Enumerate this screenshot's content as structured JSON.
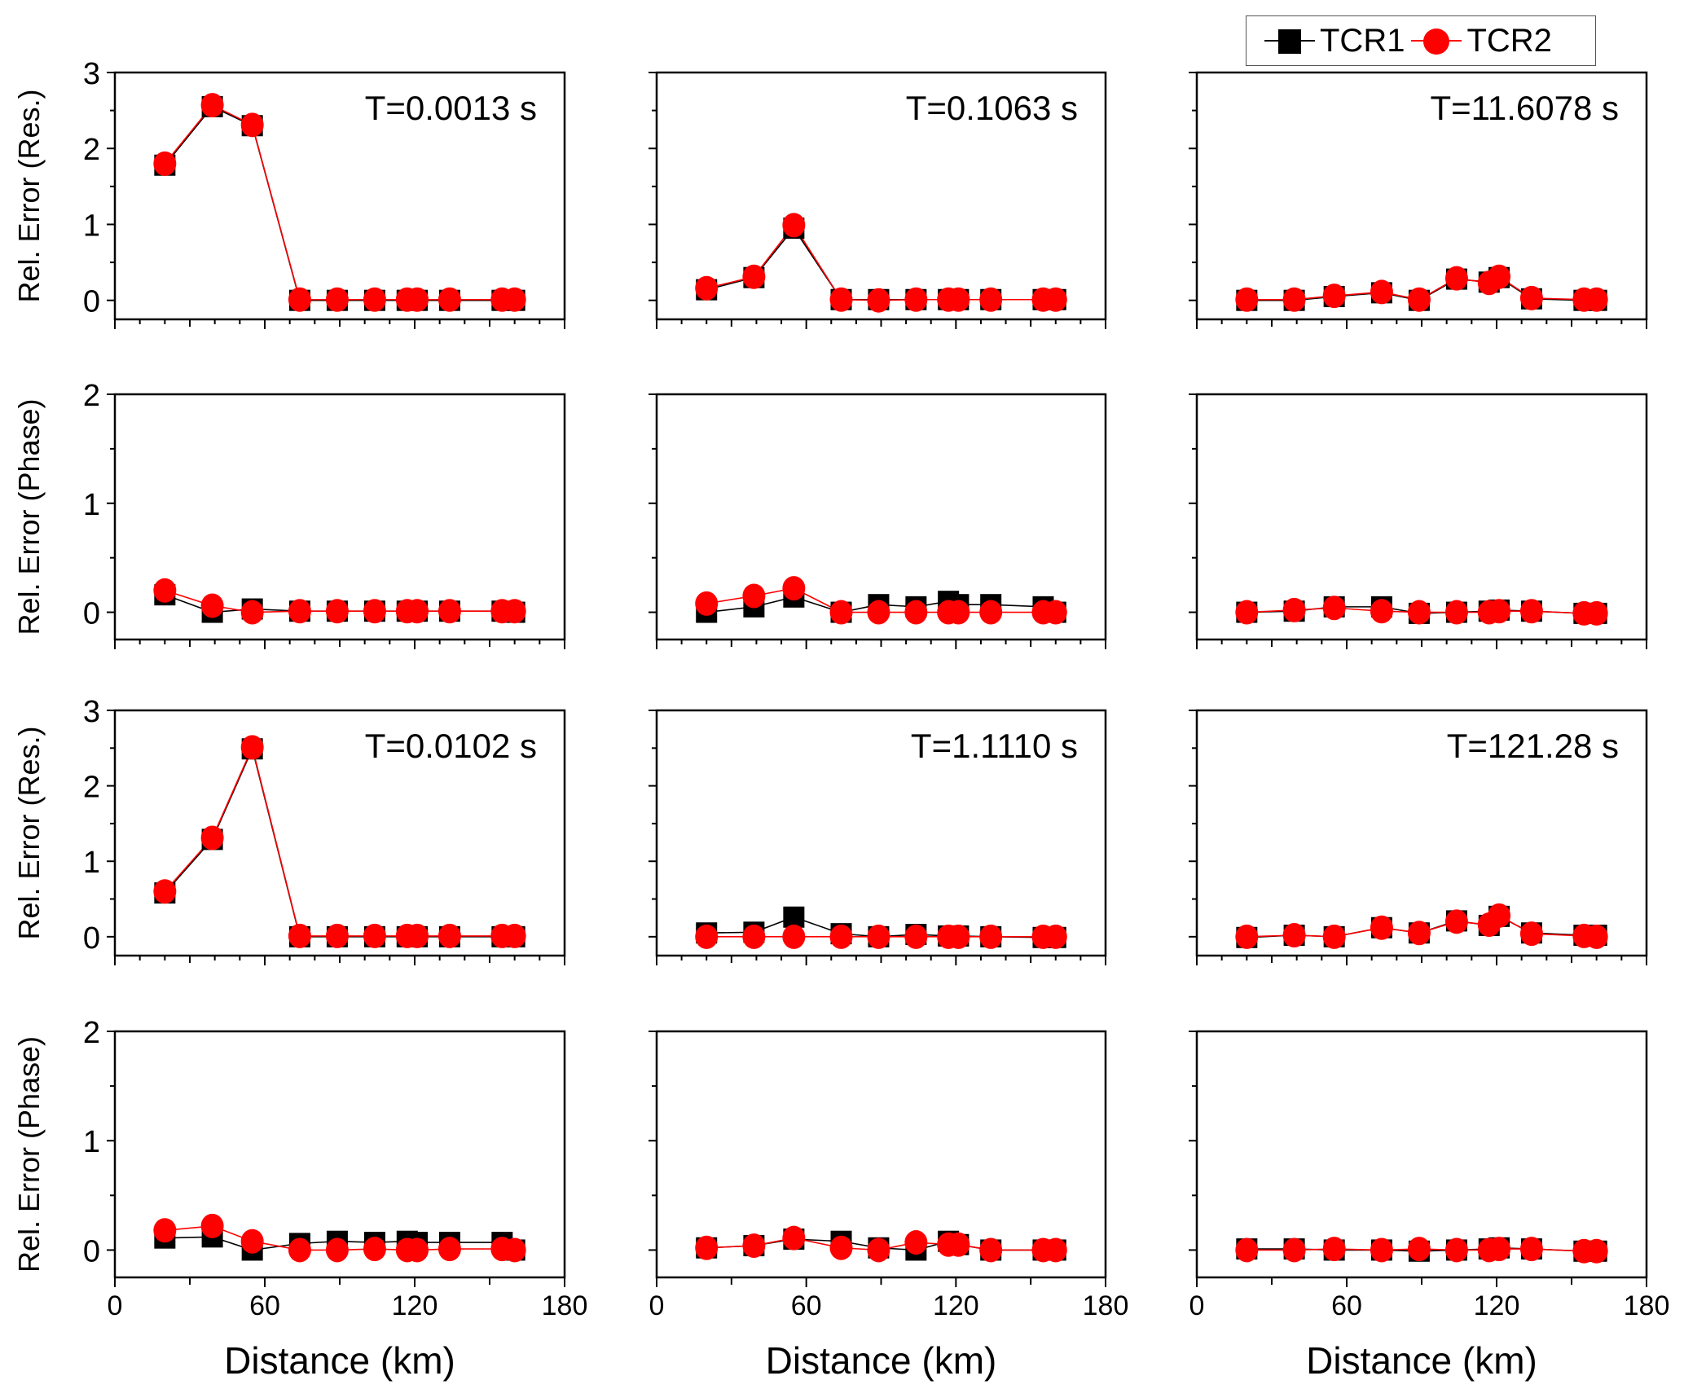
{
  "figure": {
    "legend": [
      {
        "label": "TCR1",
        "marker": "square",
        "color": "#000000"
      },
      {
        "label": "TCR2",
        "marker": "circle",
        "color": "#ff0000"
      }
    ],
    "row_ylabels": [
      "Rel. Error (Res.)",
      "Rel. Error (Phase)",
      "Rel. Error (Res.)",
      "Rel. Error (Phase)"
    ],
    "xlabel": "Distance (km)"
  },
  "chart_data": [
    {
      "type": "line",
      "row": 0,
      "col": 0,
      "annotation": "T=0.0013 s",
      "ylabel": "Rel. Error (Res.)",
      "xlabel": "",
      "xlim": [
        0,
        180
      ],
      "ylim": [
        -0.25,
        3
      ],
      "yticks": [
        0,
        1,
        2,
        3
      ],
      "xticks": [
        0,
        60,
        120,
        180
      ],
      "x": [
        20,
        39,
        55,
        74,
        89,
        104,
        117,
        121,
        134,
        155,
        160
      ],
      "series": [
        {
          "name": "TCR1",
          "values": [
            1.78,
            2.55,
            2.3,
            0.0,
            0.0,
            0.0,
            0.0,
            0.0,
            0.0,
            0.0,
            0.0
          ]
        },
        {
          "name": "TCR2",
          "values": [
            1.8,
            2.57,
            2.31,
            0.01,
            0.01,
            0.01,
            0.01,
            0.01,
            0.01,
            0.01,
            0.01
          ]
        }
      ]
    },
    {
      "type": "line",
      "row": 0,
      "col": 1,
      "annotation": "T=0.1063 s",
      "ylabel": "",
      "xlabel": "",
      "xlim": [
        0,
        180
      ],
      "ylim": [
        -0.25,
        3
      ],
      "yticks": [
        0,
        1,
        2,
        3
      ],
      "xticks": [
        0,
        60,
        120,
        180
      ],
      "x": [
        20,
        39,
        55,
        74,
        89,
        104,
        117,
        121,
        134,
        155,
        160
      ],
      "series": [
        {
          "name": "TCR1",
          "values": [
            0.14,
            0.3,
            0.95,
            0.01,
            0.01,
            0.01,
            0.01,
            0.01,
            0.01,
            0.01,
            0.01
          ]
        },
        {
          "name": "TCR2",
          "values": [
            0.16,
            0.31,
            0.99,
            0.01,
            0.0,
            0.01,
            0.01,
            0.01,
            0.01,
            0.01,
            0.01
          ]
        }
      ]
    },
    {
      "type": "line",
      "row": 0,
      "col": 2,
      "annotation": "T=11.6078 s",
      "ylabel": "",
      "xlabel": "",
      "xlim": [
        0,
        180
      ],
      "ylim": [
        -0.25,
        3
      ],
      "yticks": [
        0,
        1,
        2,
        3
      ],
      "xticks": [
        0,
        60,
        120,
        180
      ],
      "x": [
        20,
        39,
        55,
        74,
        89,
        104,
        117,
        121,
        134,
        155,
        160
      ],
      "series": [
        {
          "name": "TCR1",
          "values": [
            0.0,
            0.0,
            0.05,
            0.1,
            0.0,
            0.28,
            0.24,
            0.3,
            0.02,
            0.0,
            0.0
          ]
        },
        {
          "name": "TCR2",
          "values": [
            0.01,
            0.01,
            0.06,
            0.11,
            0.01,
            0.29,
            0.23,
            0.31,
            0.03,
            0.01,
            0.01
          ]
        }
      ]
    },
    {
      "type": "line",
      "row": 1,
      "col": 0,
      "annotation": "",
      "ylabel": "Rel. Error (Phase)",
      "xlabel": "",
      "xlim": [
        0,
        180
      ],
      "ylim": [
        -0.25,
        2
      ],
      "yticks": [
        0,
        1,
        2
      ],
      "xticks": [
        0,
        60,
        120,
        180
      ],
      "x": [
        20,
        39,
        55,
        74,
        89,
        104,
        117,
        121,
        134,
        155,
        160
      ],
      "series": [
        {
          "name": "TCR1",
          "values": [
            0.16,
            0.0,
            0.03,
            0.01,
            0.01,
            0.01,
            0.01,
            0.01,
            0.01,
            0.01,
            0.0
          ]
        },
        {
          "name": "TCR2",
          "values": [
            0.2,
            0.06,
            0.0,
            0.01,
            0.01,
            0.01,
            0.01,
            0.01,
            0.01,
            0.01,
            0.01
          ]
        }
      ]
    },
    {
      "type": "line",
      "row": 1,
      "col": 1,
      "annotation": "",
      "ylabel": "",
      "xlabel": "",
      "xlim": [
        0,
        180
      ],
      "ylim": [
        -0.25,
        2
      ],
      "yticks": [
        0,
        1,
        2
      ],
      "xticks": [
        0,
        60,
        120,
        180
      ],
      "x": [
        20,
        39,
        55,
        74,
        89,
        104,
        117,
        121,
        134,
        155,
        160
      ],
      "series": [
        {
          "name": "TCR1",
          "values": [
            0.0,
            0.05,
            0.14,
            0.0,
            0.07,
            0.05,
            0.1,
            0.07,
            0.07,
            0.05,
            0.0
          ]
        },
        {
          "name": "TCR2",
          "values": [
            0.08,
            0.15,
            0.22,
            0.0,
            0.0,
            0.0,
            0.0,
            0.0,
            0.0,
            0.0,
            0.0
          ]
        }
      ]
    },
    {
      "type": "line",
      "row": 1,
      "col": 2,
      "annotation": "",
      "ylabel": "",
      "xlabel": "",
      "xlim": [
        0,
        180
      ],
      "ylim": [
        -0.25,
        2
      ],
      "yticks": [
        0,
        1,
        2
      ],
      "xticks": [
        0,
        60,
        120,
        180
      ],
      "x": [
        20,
        39,
        55,
        74,
        89,
        104,
        117,
        121,
        134,
        155,
        160
      ],
      "series": [
        {
          "name": "TCR1",
          "values": [
            0.0,
            0.01,
            0.05,
            0.05,
            -0.01,
            0.0,
            0.01,
            0.02,
            0.01,
            -0.01,
            -0.01
          ]
        },
        {
          "name": "TCR2",
          "values": [
            0.0,
            0.02,
            0.04,
            0.01,
            0.0,
            0.0,
            0.0,
            0.01,
            0.01,
            -0.01,
            -0.01
          ]
        }
      ]
    },
    {
      "type": "line",
      "row": 2,
      "col": 0,
      "annotation": "T=0.0102 s",
      "ylabel": "Rel. Error (Res.)",
      "xlabel": "",
      "xlim": [
        0,
        180
      ],
      "ylim": [
        -0.25,
        3
      ],
      "yticks": [
        0,
        1,
        2,
        3
      ],
      "xticks": [
        0,
        60,
        120,
        180
      ],
      "x": [
        20,
        39,
        55,
        74,
        89,
        104,
        117,
        121,
        134,
        155,
        160
      ],
      "series": [
        {
          "name": "TCR1",
          "values": [
            0.58,
            1.29,
            2.49,
            0.0,
            0.0,
            0.0,
            0.0,
            0.0,
            0.0,
            0.0,
            0.0
          ]
        },
        {
          "name": "TCR2",
          "values": [
            0.6,
            1.31,
            2.51,
            0.01,
            0.01,
            0.01,
            0.01,
            0.01,
            0.01,
            0.01,
            0.01
          ]
        }
      ]
    },
    {
      "type": "line",
      "row": 2,
      "col": 1,
      "annotation": "T=1.1110 s",
      "ylabel": "",
      "xlabel": "",
      "xlim": [
        0,
        180
      ],
      "ylim": [
        -0.25,
        3
      ],
      "yticks": [
        0,
        1,
        2,
        3
      ],
      "xticks": [
        0,
        60,
        120,
        180
      ],
      "x": [
        20,
        39,
        55,
        74,
        89,
        104,
        117,
        121,
        134,
        155,
        160
      ],
      "series": [
        {
          "name": "TCR1",
          "values": [
            0.05,
            0.06,
            0.26,
            0.04,
            0.0,
            0.03,
            0.01,
            0.01,
            0.0,
            -0.01,
            -0.01
          ]
        },
        {
          "name": "TCR2",
          "values": [
            0.0,
            0.0,
            0.0,
            0.0,
            0.0,
            0.0,
            0.0,
            0.0,
            0.0,
            0.0,
            0.0
          ]
        }
      ]
    },
    {
      "type": "line",
      "row": 2,
      "col": 2,
      "annotation": "T=121.28 s",
      "ylabel": "",
      "xlabel": "",
      "xlim": [
        0,
        180
      ],
      "ylim": [
        -0.25,
        3
      ],
      "yticks": [
        0,
        1,
        2,
        3
      ],
      "xticks": [
        0,
        60,
        120,
        180
      ],
      "x": [
        20,
        39,
        55,
        74,
        89,
        104,
        117,
        121,
        134,
        155,
        160
      ],
      "series": [
        {
          "name": "TCR1",
          "values": [
            -0.01,
            0.02,
            0.0,
            0.12,
            0.05,
            0.21,
            0.15,
            0.27,
            0.05,
            0.02,
            0.02
          ]
        },
        {
          "name": "TCR2",
          "values": [
            0.0,
            0.02,
            0.0,
            0.12,
            0.05,
            0.2,
            0.16,
            0.28,
            0.04,
            0.01,
            0.0
          ]
        }
      ]
    },
    {
      "type": "line",
      "row": 3,
      "col": 0,
      "annotation": "",
      "ylabel": "Rel. Error (Phase)",
      "xlabel": "Distance (km)",
      "xlim": [
        0,
        180
      ],
      "ylim": [
        -0.25,
        2
      ],
      "yticks": [
        0,
        1,
        2
      ],
      "xticks": [
        0,
        60,
        120,
        180
      ],
      "x": [
        20,
        39,
        55,
        74,
        89,
        104,
        117,
        121,
        134,
        155,
        160
      ],
      "series": [
        {
          "name": "TCR1",
          "values": [
            0.11,
            0.12,
            0.0,
            0.06,
            0.08,
            0.07,
            0.08,
            0.07,
            0.07,
            0.07,
            0.0
          ]
        },
        {
          "name": "TCR2",
          "values": [
            0.18,
            0.22,
            0.08,
            0.0,
            0.0,
            0.01,
            0.0,
            0.0,
            0.01,
            0.01,
            0.0
          ]
        }
      ]
    },
    {
      "type": "line",
      "row": 3,
      "col": 1,
      "annotation": "",
      "ylabel": "",
      "xlabel": "Distance (km)",
      "xlim": [
        0,
        180
      ],
      "ylim": [
        -0.25,
        2
      ],
      "yticks": [
        0,
        1,
        2
      ],
      "xticks": [
        0,
        60,
        120,
        180
      ],
      "x": [
        20,
        39,
        55,
        74,
        89,
        104,
        117,
        121,
        134,
        155,
        160
      ],
      "series": [
        {
          "name": "TCR1",
          "values": [
            0.02,
            0.04,
            0.1,
            0.08,
            0.02,
            0.0,
            0.08,
            0.05,
            0.0,
            0.0,
            0.0
          ]
        },
        {
          "name": "TCR2",
          "values": [
            0.02,
            0.04,
            0.11,
            0.02,
            0.0,
            0.07,
            0.05,
            0.05,
            0.0,
            0.0,
            0.0
          ]
        }
      ]
    },
    {
      "type": "line",
      "row": 3,
      "col": 2,
      "annotation": "",
      "ylabel": "",
      "xlabel": "Distance (km)",
      "xlim": [
        0,
        180
      ],
      "ylim": [
        -0.25,
        2
      ],
      "yticks": [
        0,
        1,
        2
      ],
      "xticks": [
        0,
        60,
        120,
        180
      ],
      "x": [
        20,
        39,
        55,
        74,
        89,
        104,
        117,
        121,
        134,
        155,
        160
      ],
      "series": [
        {
          "name": "TCR1",
          "values": [
            0.01,
            0.01,
            0.0,
            0.0,
            -0.01,
            0.0,
            0.01,
            0.02,
            0.01,
            -0.01,
            -0.01
          ]
        },
        {
          "name": "TCR2",
          "values": [
            0.0,
            0.0,
            0.01,
            0.0,
            0.01,
            0.0,
            0.0,
            0.01,
            0.01,
            -0.01,
            -0.01
          ]
        }
      ]
    }
  ]
}
